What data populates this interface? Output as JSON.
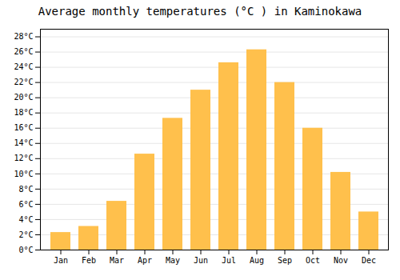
{
  "chart_data": {
    "type": "bar",
    "title": "Average monthly temperatures (°C ) in Kaminokawa",
    "categories": [
      "Jan",
      "Feb",
      "Mar",
      "Apr",
      "May",
      "Jun",
      "Jul",
      "Aug",
      "Sep",
      "Oct",
      "Nov",
      "Dec"
    ],
    "values": [
      2.3,
      3.1,
      6.4,
      12.6,
      17.3,
      21.0,
      24.6,
      26.3,
      22.0,
      16.0,
      10.2,
      5.0
    ],
    "color": "#FFC04C",
    "ylim": [
      0,
      29
    ],
    "yticks": [
      {
        "value": 0,
        "label": "0°C"
      },
      {
        "value": 2,
        "label": "2°C"
      },
      {
        "value": 4,
        "label": "4°C"
      },
      {
        "value": 6,
        "label": "6°C"
      },
      {
        "value": 8,
        "label": "8°C"
      },
      {
        "value": 10,
        "label": "10°C"
      },
      {
        "value": 12,
        "label": "12°C"
      },
      {
        "value": 14,
        "label": "14°C"
      },
      {
        "value": 16,
        "label": "16°C"
      },
      {
        "value": 18,
        "label": "18°C"
      },
      {
        "value": 20,
        "label": "20°C"
      },
      {
        "value": 22,
        "label": "22°C"
      },
      {
        "value": 24,
        "label": "24°C"
      },
      {
        "value": 26,
        "label": "26°C"
      },
      {
        "value": 28,
        "label": "28°C"
      }
    ],
    "grid": true
  }
}
